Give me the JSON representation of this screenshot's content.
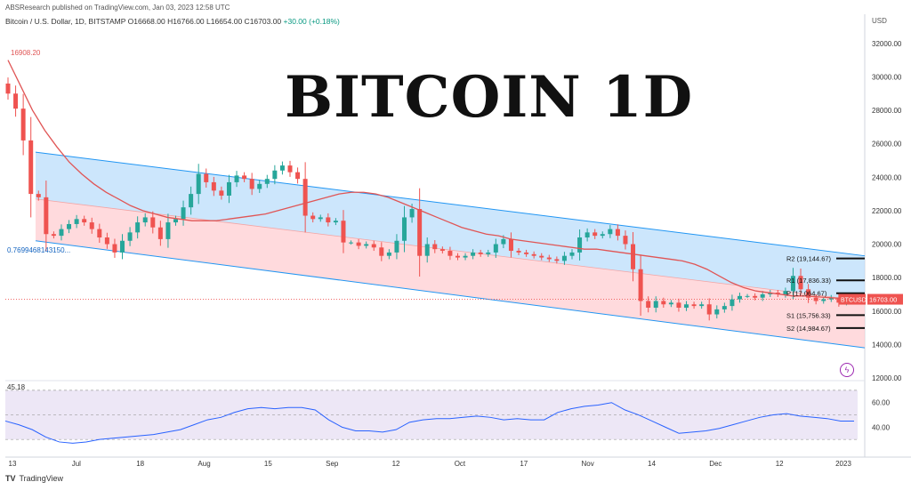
{
  "header": {
    "publisher_line": "ABSResearch published on TradingView.com, Jan 03, 2023 12:58 UTC",
    "symbol": "Bitcoin / U.S. Dollar, 1D, BITSTAMP",
    "ohlc": "O16668.00 H16766.00 L16654.00 C16703.00",
    "change": "+30.00 (+0.18%)",
    "currency": "USD"
  },
  "overlay_title": "BITCOIN 1D",
  "rsi_label": "45.18",
  "footer_logo": "TradingView",
  "colors": {
    "up": "#26a69a",
    "down": "#ef5350",
    "ma": "#e05555",
    "ma_green": "#4caf50",
    "channel_upper": "#2196f3",
    "channel_fill_upper": "#bbdefb",
    "channel_fill_lower": "#ffcdd2",
    "rsi_line": "#2962ff",
    "rsi_band": "#ede7f6",
    "price_tag": "#ef5350"
  },
  "chart_data": {
    "type": "candlestick",
    "ylim": [
      12000,
      33000
    ],
    "y_ticks": [
      "32000.00",
      "30000.00",
      "28000.00",
      "26000.00",
      "24000.00",
      "22000.00",
      "20000.00",
      "18000.00",
      "16000.00",
      "14000.00",
      "12000.00"
    ],
    "x_ticks": [
      "13",
      "Jul",
      "18",
      "Aug",
      "15",
      "Sep",
      "12",
      "Oct",
      "17",
      "Nov",
      "14",
      "Dec",
      "12",
      "2023"
    ],
    "annotations": {
      "ma_start_label": "16908.20",
      "left_value_label": "0.7699468143150...",
      "price_tag_symbol": "BTCUSD",
      "price_tag_value": "16703.00",
      "pivots": [
        {
          "label": "R2 (19,144.67)",
          "value": 19144.67
        },
        {
          "label": "R1 (17,836.33)",
          "value": 17836.33
        },
        {
          "label": "P (17,064.67)",
          "value": 17064.67
        },
        {
          "label": "S1 (15,756.33)",
          "value": 15756.33
        },
        {
          "label": "S2 (14,984.67)",
          "value": 14984.67
        }
      ]
    },
    "channel": {
      "upper": [
        [
          0,
          25500
        ],
        [
          1,
          19300
        ]
      ],
      "middle": [
        [
          0,
          22700
        ],
        [
          1,
          16600
        ]
      ],
      "lower": [
        [
          0,
          20200
        ],
        [
          1,
          13800
        ]
      ]
    },
    "candles_close": [
      29000,
      28100,
      26200,
      23000,
      22800,
      20600,
      20500,
      20900,
      21200,
      21500,
      21300,
      20900,
      20400,
      20000,
      19500,
      20200,
      20700,
      21300,
      21600,
      21000,
      20300,
      21300,
      21500,
      22200,
      23000,
      24200,
      23700,
      23200,
      22900,
      23700,
      24100,
      23900,
      23300,
      23600,
      23900,
      24400,
      24700,
      24300,
      23900,
      21700,
      21500,
      21600,
      21300,
      21400,
      20100,
      20100,
      19900,
      20000,
      19800,
      19300,
      19500,
      20200,
      21600,
      22100,
      19300,
      20000,
      19700,
      19600,
      19300,
      19200,
      19300,
      19500,
      19400,
      19500,
      20000,
      20300,
      19600,
      19500,
      19400,
      19300,
      19200,
      19100,
      19000,
      19300,
      19500,
      20400,
      20700,
      20500,
      20600,
      20900,
      20500,
      20000,
      18500,
      16600,
      16200,
      16600,
      16400,
      16500,
      16200,
      16400,
      16300,
      16400,
      15800,
      16100,
      16300,
      16700,
      16900,
      16900,
      16800,
      17000,
      17100,
      17000,
      17200,
      18100,
      17300,
      16800,
      16600,
      16700,
      16800,
      16500,
      16600,
      16700
    ],
    "ma": [
      31000,
      29500,
      28000,
      26800,
      25800,
      24900,
      24200,
      23600,
      23100,
      22700,
      22300,
      22000,
      21800,
      21600,
      21500,
      21400,
      21400,
      21400,
      21500,
      21600,
      21700,
      21800,
      22000,
      22200,
      22400,
      22600,
      22800,
      23000,
      23100,
      23100,
      23000,
      22800,
      22500,
      22200,
      21900,
      21600,
      21300,
      21000,
      20800,
      20600,
      20500,
      20300,
      20200,
      20100,
      20000,
      19900,
      19800,
      19700,
      19700,
      19600,
      19500,
      19400,
      19300,
      19200,
      19100,
      19000,
      18800,
      18500,
      18100,
      17700,
      17400,
      17200,
      17100,
      17000,
      16900,
      16900,
      16850,
      16800,
      16750,
      16700
    ],
    "rsi": {
      "ylim": [
        20,
        75
      ],
      "ticks": [
        "60.00",
        "40.00"
      ],
      "band": [
        30,
        70
      ],
      "values": [
        45,
        42,
        38,
        32,
        28,
        27,
        28,
        30,
        31,
        32,
        33,
        34,
        36,
        38,
        42,
        46,
        48,
        52,
        55,
        56,
        55,
        56,
        56,
        54,
        46,
        40,
        37,
        37,
        36,
        38,
        44,
        46,
        47,
        47,
        48,
        49,
        48,
        46,
        47,
        46,
        46,
        52,
        55,
        57,
        58,
        60,
        54,
        50,
        45,
        40,
        35,
        36,
        37,
        39,
        42,
        45,
        48,
        50,
        51,
        49,
        48,
        47,
        45,
        45
      ]
    }
  }
}
